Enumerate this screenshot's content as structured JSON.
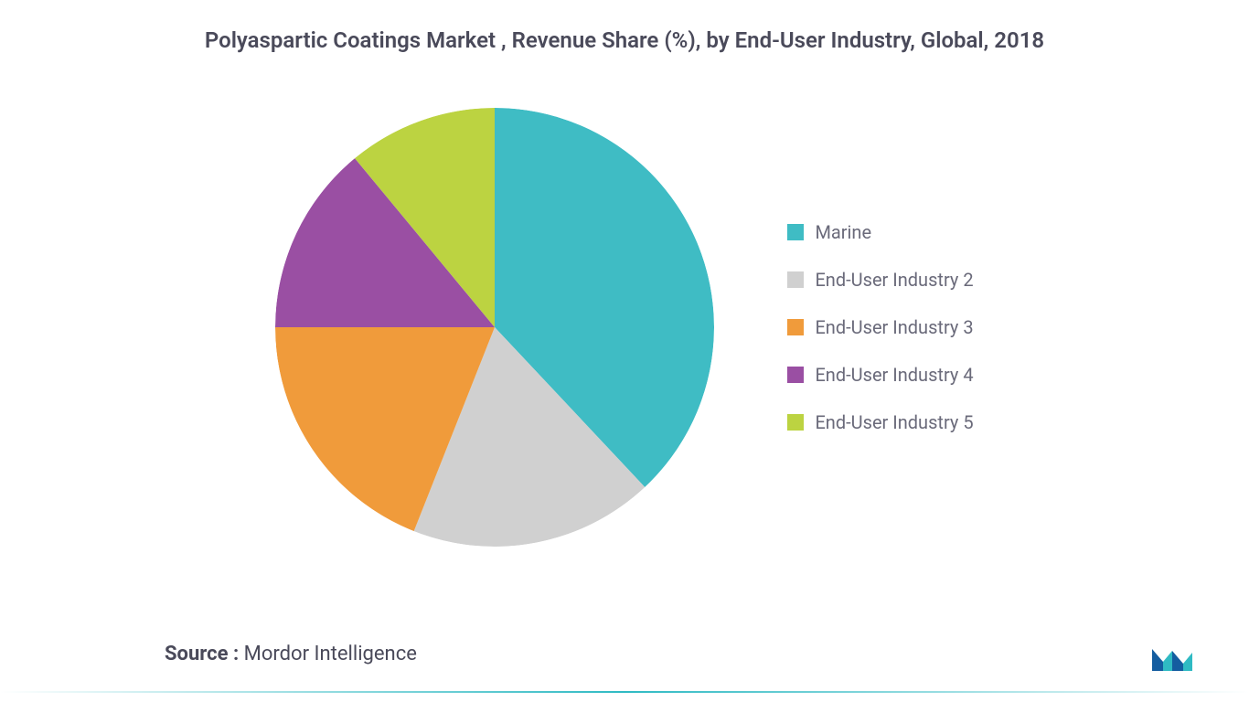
{
  "chart": {
    "type": "pie",
    "title": "Polyaspartic Coatings Market , Revenue Share (%), by End-User Industry, Global, 2018",
    "title_fontsize": 24,
    "title_color": "#4a4a5a",
    "background_color": "#ffffff",
    "pie_radius": 240,
    "slices": [
      {
        "label": "Marine",
        "value": 38,
        "color": "#3fbcc4"
      },
      {
        "label": "End-User Industry 2",
        "value": 18,
        "color": "#d0d0d0"
      },
      {
        "label": "End-User Industry 3",
        "value": 19,
        "color": "#f09b3b"
      },
      {
        "label": "End-User Industry 4",
        "value": 14,
        "color": "#9a4fa3"
      },
      {
        "label": "End-User Industry 5",
        "value": 11,
        "color": "#bcd341"
      }
    ],
    "legend": {
      "position": "right",
      "fontsize": 20,
      "font_color": "#6a6a7a",
      "swatch_size": 18
    }
  },
  "source": {
    "prefix": "Source : ",
    "text": "Mordor Intelligence",
    "fontsize": 22,
    "color": "#4a4a5a"
  },
  "logo": {
    "primary_color": "#145da0",
    "accent_color": "#2fbac3"
  }
}
